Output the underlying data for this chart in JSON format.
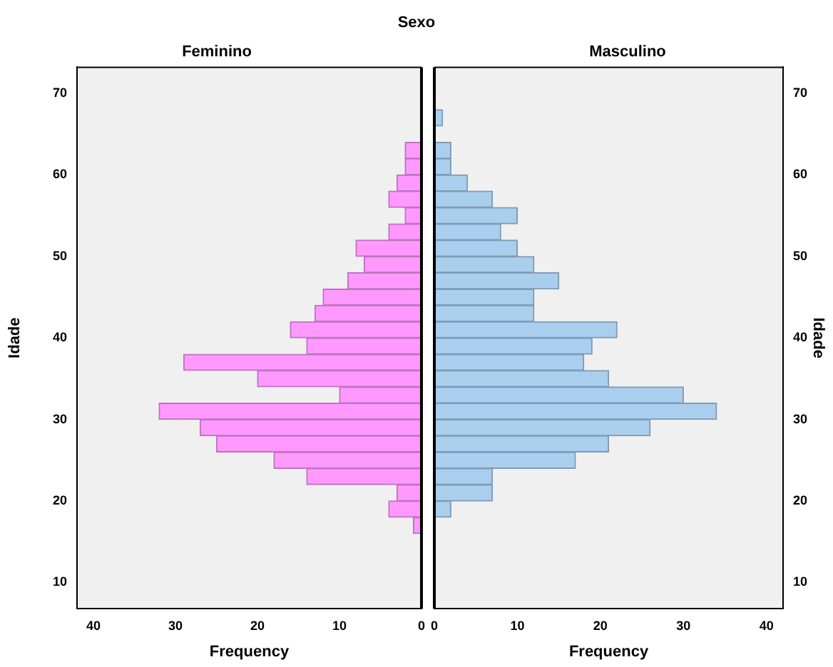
{
  "chart_data": [
    {
      "type": "histogram",
      "orientation": "horizontal",
      "title": "Feminino",
      "annotations": [
        "Sexo"
      ],
      "xlabel": "Frequency",
      "ylabel": "Idade",
      "bins": [
        16,
        18,
        20,
        22,
        24,
        26,
        28,
        30,
        32,
        34,
        36,
        38,
        40,
        42,
        44,
        46,
        48,
        50,
        52,
        54,
        56,
        58,
        60,
        62,
        64,
        66,
        68
      ],
      "values": [
        1,
        4,
        3,
        14,
        18,
        25,
        27,
        32,
        10,
        20,
        29,
        14,
        16,
        13,
        12,
        9,
        7,
        8,
        4,
        2,
        4,
        3,
        2,
        2,
        0,
        0
      ],
      "color": "#ff99ff",
      "xlim": [
        42,
        0
      ],
      "xticks": [
        40,
        30,
        20,
        10,
        0
      ],
      "ylim": [
        6.8,
        73.2
      ],
      "yticks": [
        10,
        20,
        30,
        40,
        50,
        60,
        70
      ]
    },
    {
      "type": "histogram",
      "orientation": "horizontal",
      "title": "Masculino",
      "xlabel": "Frequency",
      "ylabel": "Idade",
      "bins": [
        16,
        18,
        20,
        22,
        24,
        26,
        28,
        30,
        32,
        34,
        36,
        38,
        40,
        42,
        44,
        46,
        48,
        50,
        52,
        54,
        56,
        58,
        60,
        62,
        64,
        66,
        68
      ],
      "values": [
        0,
        2,
        7,
        7,
        17,
        21,
        26,
        34,
        30,
        21,
        18,
        19,
        22,
        12,
        12,
        15,
        12,
        10,
        8,
        10,
        7,
        4,
        2,
        2,
        0,
        1
      ],
      "color": "#aacfee",
      "xlim": [
        0,
        42
      ],
      "xticks": [
        0,
        10,
        20,
        30,
        40
      ],
      "ylim": [
        6.8,
        73.2
      ],
      "yticks": [
        10,
        20,
        30,
        40,
        50,
        60,
        70
      ]
    }
  ]
}
